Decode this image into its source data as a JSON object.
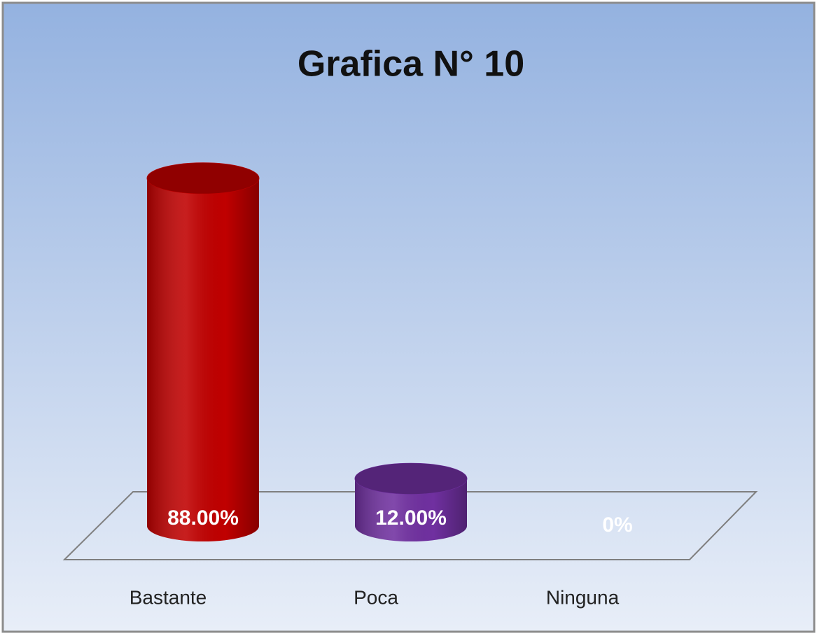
{
  "chart_data": {
    "type": "bar3d",
    "title": "Grafica N° 10",
    "categories": [
      "Bastante",
      "Poca",
      "Ninguna"
    ],
    "values": [
      88,
      12,
      0
    ],
    "value_labels": [
      "88.00%",
      "12.00%",
      "0%"
    ],
    "colors": [
      "#c00000",
      "#7030a0",
      "#1f5f9a"
    ]
  }
}
